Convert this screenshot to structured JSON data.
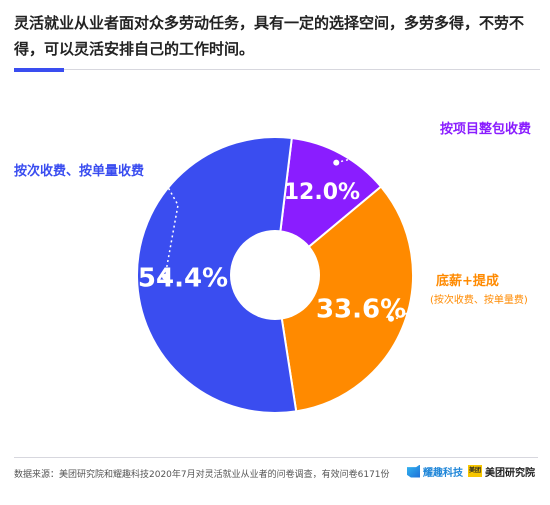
{
  "heading": {
    "text": "灵活就业从业者面对众多劳动任务，具有一定的选择空间，多劳多得，不劳不得，可以灵活安排自己的工作时间。"
  },
  "chart_data": {
    "type": "pie",
    "style": "donut",
    "slices": [
      {
        "label": "按项目整包收费",
        "sublabel": "",
        "value": 12.0,
        "value_text": "12.0%",
        "color": "#8a1dff"
      },
      {
        "label": "底薪+提成",
        "sublabel": "(按次收费、按单量费)",
        "value": 33.6,
        "value_text": "33.6%",
        "color": "#ff8a00"
      },
      {
        "label": "按次收费、按单量收费",
        "sublabel": "",
        "value": 54.4,
        "value_text": "54.4%",
        "color": "#3a4df0"
      }
    ],
    "legend": "none"
  },
  "footer": {
    "source": "数据来源：美团研究院和耀趣科技2020年7月对灵活就业从业者的问卷调查，有效问卷6171份",
    "logo_a_text": "耀趣科技",
    "logo_b_text": "美团研究院",
    "logo_b_mark": "美团"
  }
}
